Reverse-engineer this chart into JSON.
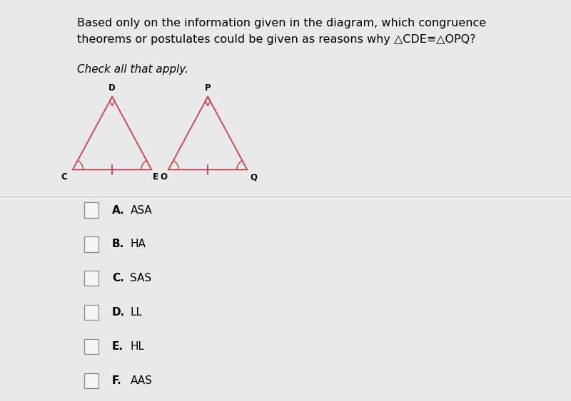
{
  "bg_color": "#e9e9e9",
  "title_line1": "Based only on the information given in the diagram, which congruence",
  "title_line2": "theorems or postulates could be given as reasons why △CDE≡△OPQ?",
  "subtitle_text": "Check all that apply.",
  "title_fontsize": 11.5,
  "subtitle_fontsize": 11,
  "options_bold": [
    "A.",
    "B.",
    "C.",
    "D.",
    "E.",
    "F."
  ],
  "options_text": [
    "ASA",
    "HA",
    "SAS",
    "LL",
    "HL",
    "AAS"
  ],
  "triangle1": {
    "C": [
      0.0,
      0.0
    ],
    "D": [
      0.42,
      0.78
    ],
    "E": [
      0.84,
      0.0
    ]
  },
  "triangle2": {
    "O": [
      1.02,
      0.0
    ],
    "P": [
      1.44,
      0.78
    ],
    "Q": [
      1.86,
      0.0
    ]
  },
  "triangle_color": "#c84b55",
  "triangle_linewidth": 1.4,
  "label_fontsize": 8.5,
  "separator_color": "#cccccc",
  "checkbox_edge_color": "#888888",
  "checkbox_face_color": "#f5f5f5"
}
